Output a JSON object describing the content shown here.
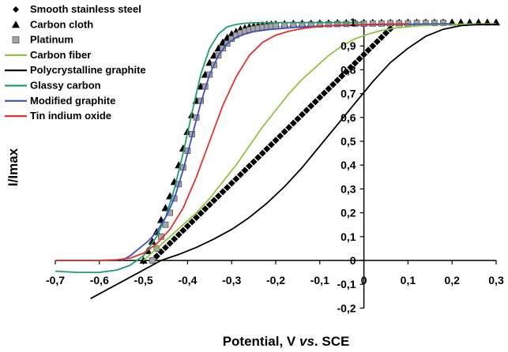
{
  "chart_data": {
    "type": "line",
    "title": "",
    "xlabel": "Potential, V vs. SCE",
    "xlabel_parts": [
      "Potential, V ",
      "vs",
      ". SCE"
    ],
    "ylabel": "I/Imax",
    "xlim": [
      -0.7,
      0.3
    ],
    "ylim": [
      -0.2,
      1.0
    ],
    "x_ticks": [
      -0.7,
      -0.6,
      -0.5,
      -0.4,
      -0.3,
      -0.2,
      -0.1,
      0,
      0.1,
      0.2,
      0.3
    ],
    "x_tick_labels": [
      "-0,7",
      "-0,6",
      "-0,5",
      "-0,4",
      "-0,3",
      "-0,2",
      "-0,1",
      "0",
      "0,1",
      "0,2",
      "0,3"
    ],
    "y_ticks": [
      -0.2,
      -0.1,
      0,
      0.1,
      0.2,
      0.3,
      0.4,
      0.5,
      0.6,
      0.7,
      0.8,
      0.9,
      1.0
    ],
    "y_tick_labels": [
      "-0,2",
      "-0,1",
      "0",
      "0,1",
      "0,2",
      "0,3",
      "0,4",
      "0,5",
      "0,6",
      "0,7",
      "0,8",
      "0,9",
      "1"
    ],
    "grid": false,
    "legend_position": "top-left",
    "series": [
      {
        "name": "Smooth stainless steel",
        "kind": "marker-diamond",
        "color": "#000000",
        "x": [
          -0.48,
          -0.47,
          -0.46,
          -0.45,
          -0.44,
          -0.43,
          -0.42,
          -0.41,
          -0.4,
          -0.39,
          -0.38,
          -0.37,
          -0.36,
          -0.35,
          -0.34,
          -0.33,
          -0.32,
          -0.31,
          -0.3,
          -0.29,
          -0.28,
          -0.27,
          -0.26,
          -0.25,
          -0.24,
          -0.23,
          -0.22,
          -0.21,
          -0.2,
          -0.19,
          -0.18,
          -0.17,
          -0.16,
          -0.15,
          -0.14,
          -0.13,
          -0.12,
          -0.11,
          -0.1,
          -0.09,
          -0.08,
          -0.07,
          -0.06,
          -0.05,
          -0.04,
          -0.03,
          -0.02,
          -0.01,
          0.0,
          0.01,
          0.02,
          0.03,
          0.04,
          0.05,
          0.06
        ],
        "y": [
          0.0,
          0.018,
          0.036,
          0.054,
          0.072,
          0.09,
          0.108,
          0.126,
          0.144,
          0.162,
          0.18,
          0.198,
          0.216,
          0.234,
          0.252,
          0.27,
          0.288,
          0.306,
          0.324,
          0.342,
          0.36,
          0.378,
          0.396,
          0.414,
          0.432,
          0.45,
          0.468,
          0.486,
          0.504,
          0.522,
          0.54,
          0.558,
          0.576,
          0.594,
          0.612,
          0.63,
          0.648,
          0.666,
          0.684,
          0.702,
          0.72,
          0.738,
          0.756,
          0.774,
          0.792,
          0.81,
          0.828,
          0.846,
          0.864,
          0.882,
          0.9,
          0.918,
          0.936,
          0.954,
          0.972
        ]
      },
      {
        "name": "Carbon cloth",
        "kind": "marker-triangle",
        "color": "#000000",
        "x": [
          -0.5,
          -0.49,
          -0.48,
          -0.47,
          -0.46,
          -0.45,
          -0.44,
          -0.43,
          -0.42,
          -0.41,
          -0.4,
          -0.39,
          -0.38,
          -0.37,
          -0.36,
          -0.35,
          -0.34,
          -0.33,
          -0.32,
          -0.31,
          -0.3,
          -0.29,
          -0.28,
          -0.27,
          -0.26,
          -0.25,
          -0.24,
          -0.23,
          -0.22,
          -0.21,
          -0.2,
          -0.18,
          -0.16,
          -0.14,
          -0.12,
          -0.1,
          -0.08,
          -0.06,
          -0.04,
          -0.02,
          0.0,
          0.02,
          0.04,
          0.06,
          0.08,
          0.1,
          0.12,
          0.14,
          0.16,
          0.18,
          0.2,
          0.22,
          0.24,
          0.26,
          0.28,
          0.3
        ],
        "y": [
          0.0,
          0.04,
          0.08,
          0.12,
          0.17,
          0.22,
          0.27,
          0.33,
          0.4,
          0.47,
          0.54,
          0.61,
          0.67,
          0.73,
          0.78,
          0.83,
          0.86,
          0.89,
          0.915,
          0.935,
          0.95,
          0.96,
          0.97,
          0.975,
          0.98,
          0.983,
          0.986,
          0.988,
          0.99,
          0.991,
          0.992,
          0.993,
          0.994,
          0.995,
          0.995,
          0.996,
          0.996,
          0.997,
          0.997,
          0.997,
          0.998,
          0.998,
          0.998,
          0.998,
          0.998,
          0.999,
          0.999,
          0.999,
          0.999,
          0.999,
          0.999,
          0.999,
          0.999,
          0.999,
          0.999,
          0.999
        ]
      },
      {
        "name": "Platinum",
        "kind": "marker-square",
        "color": "#a6a6a6",
        "x": [
          -0.48,
          -0.47,
          -0.46,
          -0.45,
          -0.44,
          -0.43,
          -0.42,
          -0.41,
          -0.4,
          -0.39,
          -0.38,
          -0.37,
          -0.36,
          -0.35,
          -0.34,
          -0.33,
          -0.32,
          -0.31,
          -0.3,
          -0.29,
          -0.28,
          -0.27,
          -0.26,
          -0.25,
          -0.24,
          -0.23,
          -0.22,
          -0.21,
          -0.2,
          -0.18,
          -0.16,
          -0.14,
          -0.12,
          -0.1,
          -0.08,
          -0.06,
          -0.04,
          -0.02,
          0.0,
          0.02,
          0.04,
          0.06,
          0.08,
          0.1,
          0.12,
          0.14,
          0.16,
          0.18
        ],
        "y": [
          0.0,
          0.05,
          0.1,
          0.15,
          0.2,
          0.26,
          0.32,
          0.39,
          0.46,
          0.53,
          0.6,
          0.67,
          0.73,
          0.78,
          0.82,
          0.86,
          0.89,
          0.91,
          0.93,
          0.945,
          0.955,
          0.962,
          0.968,
          0.972,
          0.975,
          0.978,
          0.98,
          0.982,
          0.984,
          0.986,
          0.988,
          0.989,
          0.99,
          0.99,
          0.991,
          0.992,
          0.992,
          0.993,
          0.993,
          0.994,
          0.994,
          0.995,
          0.995,
          0.995,
          0.996,
          0.996,
          0.996,
          0.997
        ]
      },
      {
        "name": "Carbon fiber",
        "kind": "line",
        "color": "#8cc63f",
        "x": [
          -0.5,
          -0.47,
          -0.44,
          -0.41,
          -0.38,
          -0.35,
          -0.32,
          -0.29,
          -0.26,
          -0.23,
          -0.2,
          -0.17,
          -0.14,
          -0.11,
          -0.08,
          -0.05,
          -0.02,
          0.01,
          0.04,
          0.07,
          0.1,
          0.13,
          0.16,
          0.19,
          0.22,
          0.25,
          0.28,
          0.3
        ],
        "y": [
          0.0,
          0.05,
          0.1,
          0.15,
          0.2,
          0.26,
          0.33,
          0.4,
          0.48,
          0.56,
          0.63,
          0.7,
          0.76,
          0.81,
          0.86,
          0.9,
          0.93,
          0.95,
          0.965,
          0.975,
          0.98,
          0.985,
          0.988,
          0.99,
          0.991,
          0.992,
          0.993,
          0.993
        ]
      },
      {
        "name": "Polycrystalline graphite",
        "kind": "line",
        "color": "#000000",
        "x": [
          -0.62,
          -0.58,
          -0.54,
          -0.5,
          -0.46,
          -0.42,
          -0.38,
          -0.34,
          -0.3,
          -0.26,
          -0.22,
          -0.18,
          -0.14,
          -0.1,
          -0.06,
          -0.02,
          0.02,
          0.06,
          0.1,
          0.14,
          0.18,
          0.22,
          0.26,
          0.3
        ],
        "y": [
          -0.16,
          -0.12,
          -0.08,
          -0.04,
          0.0,
          0.025,
          0.055,
          0.09,
          0.13,
          0.18,
          0.24,
          0.31,
          0.39,
          0.48,
          0.57,
          0.66,
          0.75,
          0.83,
          0.89,
          0.94,
          0.97,
          0.985,
          0.99,
          0.99
        ]
      },
      {
        "name": "Glassy carbon",
        "kind": "line",
        "color": "#1e9e6e",
        "x": [
          -0.7,
          -0.65,
          -0.6,
          -0.56,
          -0.53,
          -0.5,
          -0.47,
          -0.45,
          -0.43,
          -0.41,
          -0.39,
          -0.37,
          -0.35,
          -0.33,
          -0.31,
          -0.29,
          -0.27,
          -0.25,
          -0.2,
          -0.15,
          -0.1,
          -0.05,
          0.0
        ],
        "y": [
          -0.045,
          -0.05,
          -0.05,
          -0.04,
          -0.02,
          0.02,
          0.1,
          0.18,
          0.3,
          0.45,
          0.62,
          0.78,
          0.89,
          0.95,
          0.98,
          0.99,
          0.995,
          0.997,
          0.998,
          0.998,
          0.998,
          0.998,
          0.998
        ]
      },
      {
        "name": "Modified graphite",
        "kind": "line",
        "color": "#3c4fc1",
        "x": [
          -0.55,
          -0.53,
          -0.51,
          -0.49,
          -0.47,
          -0.45,
          -0.43,
          -0.41,
          -0.39,
          -0.37,
          -0.35,
          -0.33,
          -0.31,
          -0.29,
          -0.27,
          -0.25,
          -0.22,
          -0.19,
          -0.16,
          -0.13,
          -0.1,
          -0.05,
          0.0,
          0.05,
          0.1,
          0.15,
          0.2
        ],
        "y": [
          0.0,
          0.02,
          0.05,
          0.08,
          0.12,
          0.18,
          0.26,
          0.38,
          0.52,
          0.66,
          0.78,
          0.86,
          0.91,
          0.935,
          0.95,
          0.96,
          0.968,
          0.973,
          0.977,
          0.98,
          0.983,
          0.986,
          0.988,
          0.99,
          0.991,
          0.992,
          0.993
        ]
      },
      {
        "name": "Tin indium oxide",
        "kind": "line",
        "color": "#e8302c",
        "x": [
          -0.7,
          -0.65,
          -0.6,
          -0.56,
          -0.53,
          -0.5,
          -0.47,
          -0.44,
          -0.41,
          -0.38,
          -0.35,
          -0.32,
          -0.29,
          -0.26,
          -0.23,
          -0.2,
          -0.17,
          -0.14,
          -0.11,
          -0.08,
          -0.05,
          0.0,
          0.05,
          0.1
        ],
        "y": [
          0.0,
          0.0,
          0.0,
          0.003,
          0.01,
          0.03,
          0.07,
          0.13,
          0.22,
          0.35,
          0.5,
          0.65,
          0.77,
          0.86,
          0.915,
          0.945,
          0.962,
          0.973,
          0.98,
          0.985,
          0.988,
          0.99,
          0.992,
          0.993
        ]
      }
    ]
  }
}
